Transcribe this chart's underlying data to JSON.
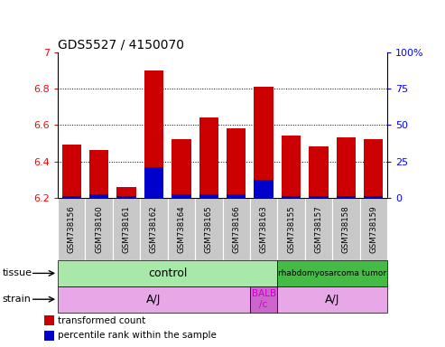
{
  "title": "GDS5527 / 4150070",
  "samples": [
    "GSM738156",
    "GSM738160",
    "GSM738161",
    "GSM738162",
    "GSM738164",
    "GSM738165",
    "GSM738166",
    "GSM738163",
    "GSM738155",
    "GSM738157",
    "GSM738158",
    "GSM738159"
  ],
  "red_values": [
    6.49,
    6.46,
    6.26,
    6.9,
    6.52,
    6.64,
    6.58,
    6.81,
    6.54,
    6.48,
    6.53,
    6.52
  ],
  "blue_values": [
    6.21,
    6.22,
    6.21,
    6.37,
    6.22,
    6.22,
    6.22,
    6.3,
    6.21,
    6.21,
    6.21,
    6.21
  ],
  "ymin": 6.2,
  "ymax": 7.0,
  "yticks_left": [
    6.2,
    6.4,
    6.6,
    6.8,
    7.0
  ],
  "ytick_labels_left": [
    "6.2",
    "6.4",
    "6.6",
    "6.8",
    "7"
  ],
  "right_ytick_percents": [
    0,
    25,
    50,
    75,
    100
  ],
  "right_ytick_labels": [
    "0",
    "25",
    "50",
    "75",
    "100%"
  ],
  "grid_values": [
    6.4,
    6.6,
    6.8
  ],
  "bar_color": "#cc0000",
  "blue_color": "#0000cc",
  "xticklabel_bg": "#c8c8c8",
  "tissue_groups": [
    {
      "label": "control",
      "start": 0,
      "end": 8,
      "color": "#a8e8a8",
      "fontsize": 9
    },
    {
      "label": "rhabdomyosarcoma tumor",
      "start": 8,
      "end": 12,
      "color": "#44bb44",
      "fontsize": 6.5
    }
  ],
  "strain_groups": [
    {
      "label": "A/J",
      "start": 0,
      "end": 7,
      "color": "#e8a8e8",
      "fontsize": 9
    },
    {
      "label": "BALB\n/c",
      "start": 7,
      "end": 8,
      "color": "#cc66cc",
      "text_color": "#cc00cc",
      "fontsize": 7.5
    },
    {
      "label": "A/J",
      "start": 8,
      "end": 12,
      "color": "#e8a8e8",
      "fontsize": 9
    }
  ],
  "legend_items": [
    {
      "color": "#cc0000",
      "label": "transformed count"
    },
    {
      "color": "#0000cc",
      "label": "percentile rank within the sample"
    }
  ],
  "tissue_label": "tissue",
  "strain_label": "strain"
}
